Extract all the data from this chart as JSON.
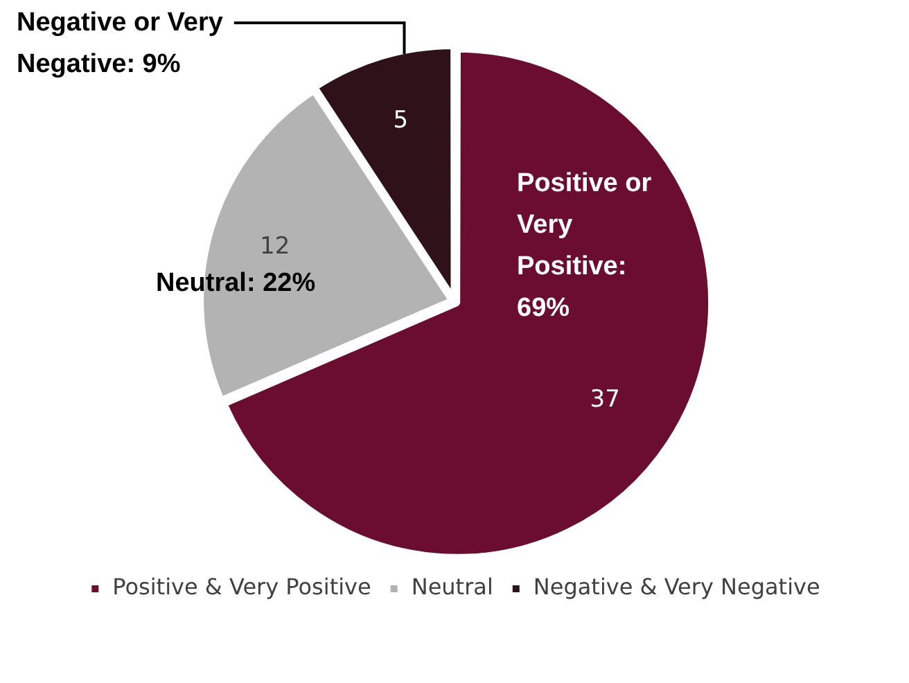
{
  "chart_data": {
    "type": "pie",
    "categories": [
      "Positive & Very Positive",
      "Neutral",
      "Negative & Very Negative"
    ],
    "values": [
      37,
      12,
      5
    ],
    "colors": [
      "#6b0d2e",
      "#b3b3b3",
      "#2f1119"
    ],
    "data_labels": true,
    "legend": "bottom",
    "annotations": [
      "Positive or Very Positive: 69%",
      "Neutral: 22%",
      "Negative or Very Negative: 9%"
    ]
  }
}
